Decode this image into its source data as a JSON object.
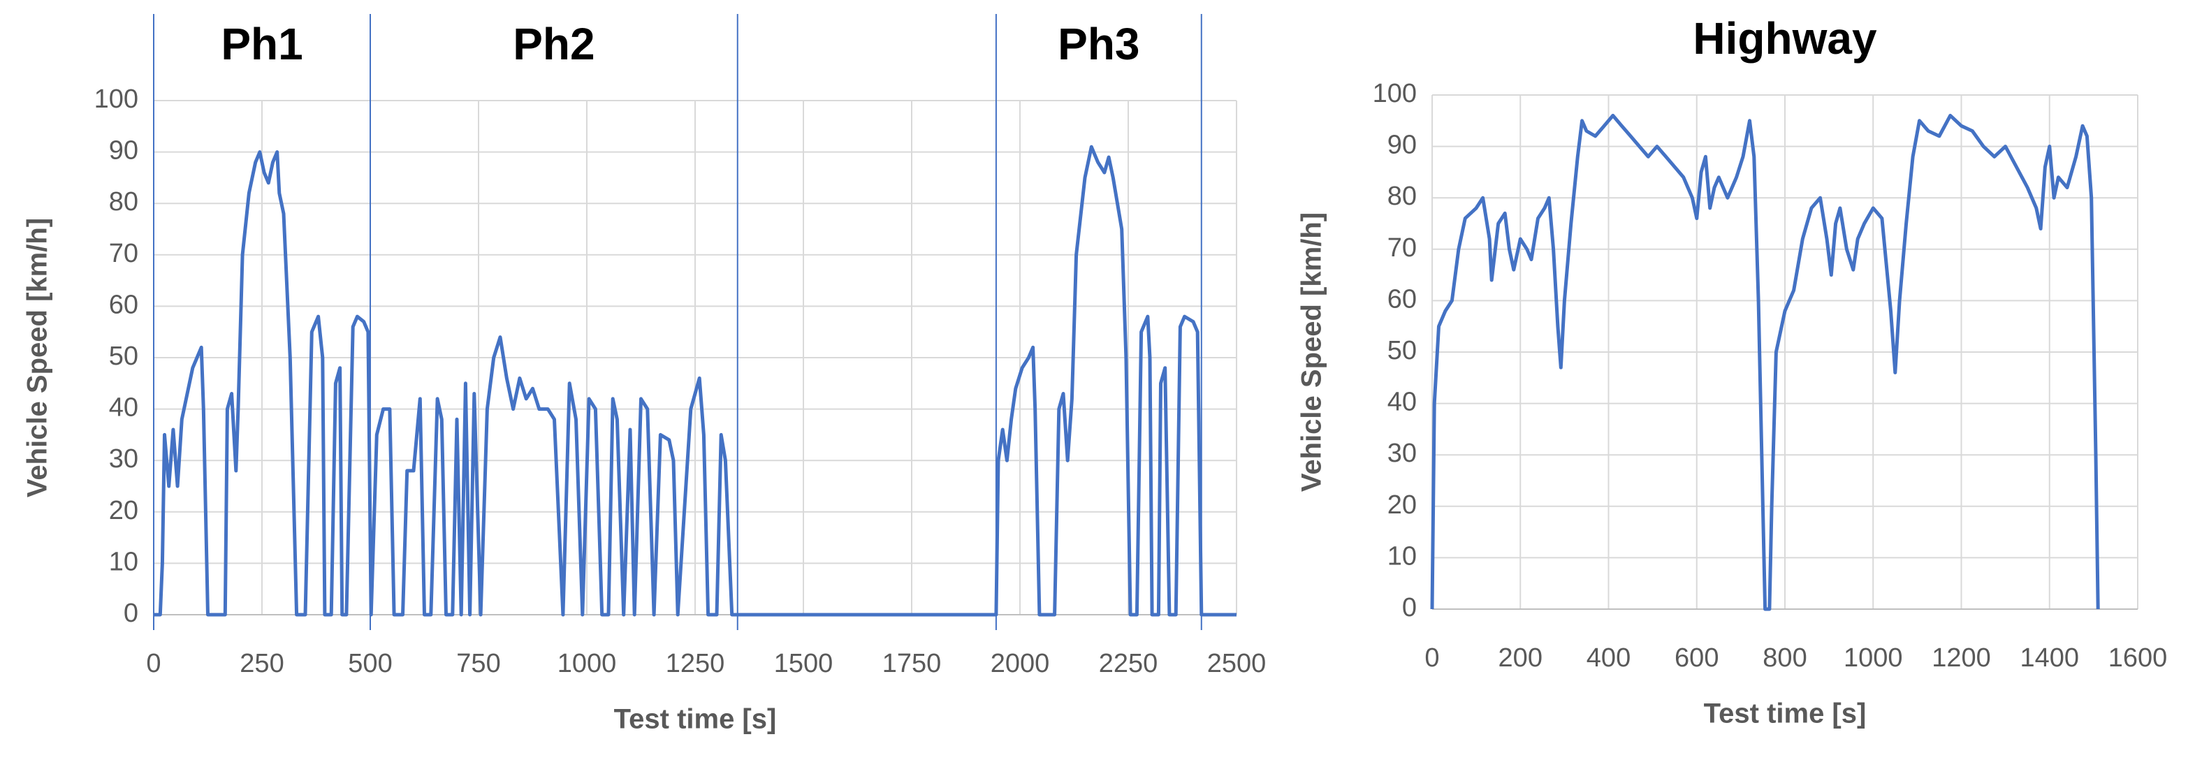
{
  "chart_data": [
    {
      "type": "line",
      "annotations": [
        "Ph1",
        "Ph2",
        "Ph3"
      ],
      "phase_lines": [
        0,
        500,
        1348,
        1945,
        2419
      ],
      "x_label": "Test time [s]",
      "y_label": "Vehicle Speed [km/h]",
      "xlim": [
        0,
        2500
      ],
      "xticks": [
        0,
        250,
        500,
        750,
        1000,
        1250,
        1500,
        1750,
        2000,
        2250,
        2500
      ],
      "ylim": [
        0,
        100
      ],
      "yticks": [
        0,
        10,
        20,
        30,
        40,
        50,
        60,
        70,
        80,
        90,
        100
      ],
      "grid": true,
      "x": [
        0,
        15,
        20,
        25,
        35,
        45,
        55,
        65,
        75,
        90,
        100,
        110,
        115,
        125,
        165,
        170,
        180,
        190,
        195,
        205,
        220,
        235,
        245,
        255,
        265,
        275,
        285,
        290,
        300,
        315,
        330,
        350,
        365,
        380,
        390,
        395,
        410,
        420,
        430,
        435,
        445,
        460,
        470,
        485,
        495,
        502,
        515,
        530,
        545,
        555,
        575,
        585,
        600,
        615,
        625,
        640,
        655,
        665,
        675,
        690,
        700,
        710,
        720,
        730,
        740,
        755,
        770,
        785,
        800,
        815,
        830,
        845,
        860,
        875,
        890,
        910,
        925,
        945,
        960,
        975,
        990,
        1005,
        1020,
        1035,
        1050,
        1060,
        1070,
        1085,
        1100,
        1110,
        1125,
        1140,
        1155,
        1170,
        1190,
        1200,
        1210,
        1240,
        1260,
        1270,
        1280,
        1300,
        1310,
        1320,
        1335,
        1348,
        1945,
        1950,
        1960,
        1970,
        1980,
        1990,
        2005,
        2020,
        2030,
        2035,
        2045,
        2080,
        2090,
        2100,
        2110,
        2120,
        2130,
        2150,
        2165,
        2180,
        2195,
        2205,
        2215,
        2235,
        2245,
        2255,
        2270,
        2280,
        2295,
        2300,
        2305,
        2320,
        2325,
        2335,
        2345,
        2360,
        2370,
        2380,
        2400,
        2410,
        2419,
        2500
      ],
      "series": [
        {
          "color": "#4472c4",
          "values": [
            0,
            0,
            10,
            35,
            25,
            36,
            25,
            38,
            42,
            48,
            50,
            52,
            40,
            0,
            0,
            40,
            43,
            28,
            40,
            70,
            82,
            88,
            90,
            86,
            84,
            88,
            90,
            82,
            78,
            50,
            0,
            0,
            55,
            58,
            50,
            0,
            0,
            45,
            48,
            0,
            0,
            56,
            58,
            57,
            55,
            0,
            35,
            40,
            40,
            0,
            0,
            28,
            28,
            42,
            0,
            0,
            42,
            38,
            0,
            0,
            38,
            0,
            45,
            0,
            43,
            0,
            40,
            50,
            54,
            46,
            40,
            46,
            42,
            44,
            40,
            40,
            38,
            0,
            45,
            38,
            0,
            42,
            40,
            0,
            0,
            42,
            38,
            0,
            36,
            0,
            42,
            40,
            0,
            35,
            34,
            30,
            0,
            40,
            46,
            35,
            0,
            0,
            35,
            30,
            0,
            0,
            0,
            30,
            36,
            30,
            38,
            44,
            48,
            50,
            52,
            40,
            0,
            0,
            40,
            43,
            30,
            42,
            70,
            85,
            91,
            88,
            86,
            89,
            85,
            75,
            50,
            0,
            0,
            55,
            58,
            50,
            0,
            0,
            45,
            48,
            0,
            0,
            56,
            58,
            57,
            55,
            0,
            0
          ]
        }
      ]
    },
    {
      "type": "line",
      "title": "Highway",
      "x_label": "Test time [s]",
      "y_label": "Vehicle Speed [km/h]",
      "xlim": [
        0,
        1600
      ],
      "xticks": [
        0,
        200,
        400,
        600,
        800,
        1000,
        1200,
        1400,
        1600
      ],
      "ylim": [
        0,
        100
      ],
      "yticks": [
        0,
        10,
        20,
        30,
        40,
        50,
        60,
        70,
        80,
        90,
        100
      ],
      "grid": true,
      "x": [
        0,
        5,
        15,
        30,
        45,
        60,
        75,
        100,
        115,
        130,
        135,
        150,
        165,
        175,
        185,
        200,
        215,
        225,
        240,
        255,
        265,
        275,
        285,
        292,
        300,
        315,
        330,
        340,
        350,
        370,
        390,
        410,
        430,
        450,
        470,
        490,
        510,
        530,
        550,
        570,
        590,
        600,
        610,
        620,
        630,
        640,
        650,
        660,
        670,
        690,
        705,
        720,
        730,
        740,
        750,
        755,
        765,
        770,
        780,
        800,
        820,
        840,
        860,
        880,
        895,
        905,
        915,
        925,
        940,
        955,
        965,
        980,
        1000,
        1020,
        1040,
        1050,
        1060,
        1075,
        1090,
        1105,
        1125,
        1150,
        1175,
        1200,
        1225,
        1250,
        1275,
        1300,
        1325,
        1350,
        1370,
        1380,
        1390,
        1400,
        1410,
        1420,
        1440,
        1460,
        1475,
        1485,
        1495,
        1505,
        1510
      ],
      "series": [
        {
          "color": "#4472c4",
          "values": [
            0,
            40,
            55,
            58,
            60,
            70,
            76,
            78,
            80,
            72,
            64,
            75,
            77,
            70,
            66,
            72,
            70,
            68,
            76,
            78,
            80,
            70,
            55,
            47,
            60,
            75,
            88,
            95,
            93,
            92,
            94,
            96,
            94,
            92,
            90,
            88,
            90,
            88,
            86,
            84,
            80,
            76,
            85,
            88,
            78,
            82,
            84,
            82,
            80,
            84,
            88,
            95,
            88,
            60,
            20,
            0,
            0,
            20,
            50,
            58,
            62,
            72,
            78,
            80,
            72,
            65,
            75,
            78,
            70,
            66,
            72,
            75,
            78,
            76,
            58,
            46,
            60,
            75,
            88,
            95,
            93,
            92,
            96,
            94,
            93,
            90,
            88,
            90,
            86,
            82,
            78,
            74,
            86,
            90,
            80,
            84,
            82,
            88,
            94,
            92,
            80,
            30,
            0
          ]
        }
      ]
    }
  ]
}
